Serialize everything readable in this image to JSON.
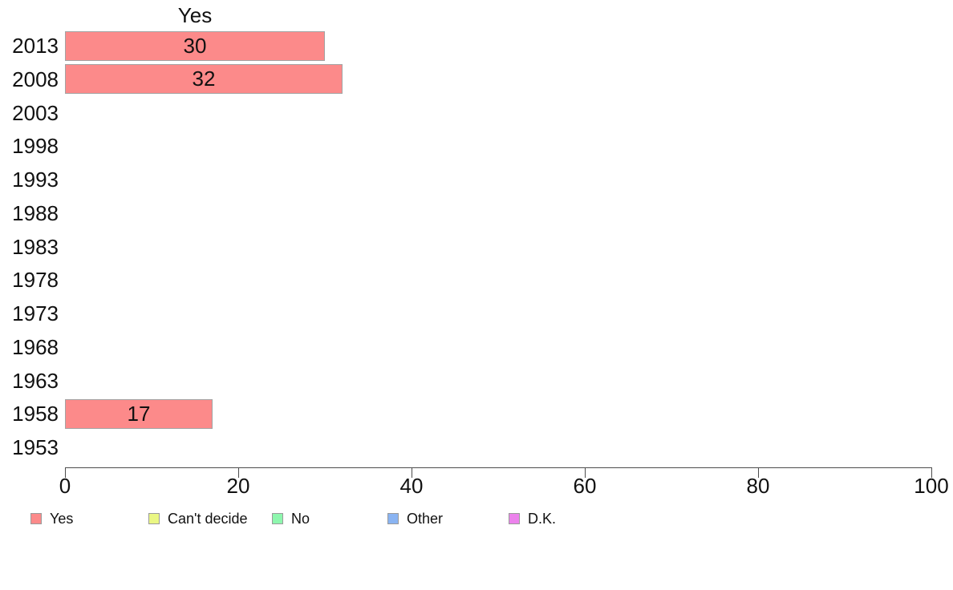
{
  "chart_data": {
    "type": "bar",
    "orientation": "horizontal",
    "title": "Yes",
    "categories": [
      "2013",
      "2008",
      "2003",
      "1998",
      "1993",
      "1988",
      "1983",
      "1978",
      "1973",
      "1968",
      "1963",
      "1958",
      "1953"
    ],
    "values": [
      30,
      32,
      null,
      null,
      null,
      null,
      null,
      null,
      null,
      null,
      null,
      17,
      null
    ],
    "xlabel": "",
    "ylabel": "",
    "xlim": [
      0,
      100
    ],
    "x_ticks": [
      0,
      20,
      40,
      60,
      80,
      100
    ],
    "grid": false,
    "bar_color": "#fc8a8a",
    "bar_border_color": "#a3a3a3",
    "value_labels_shown": true,
    "legend": {
      "position": "bottom",
      "entries": [
        {
          "label": "Yes",
          "color": "#fc8a8a"
        },
        {
          "label": "Can't decide",
          "color": "#eaf784"
        },
        {
          "label": "No",
          "color": "#8ef7ae"
        },
        {
          "label": "Other",
          "color": "#8ab4f2"
        },
        {
          "label": "D.K.",
          "color": "#ec82ec"
        }
      ]
    }
  }
}
